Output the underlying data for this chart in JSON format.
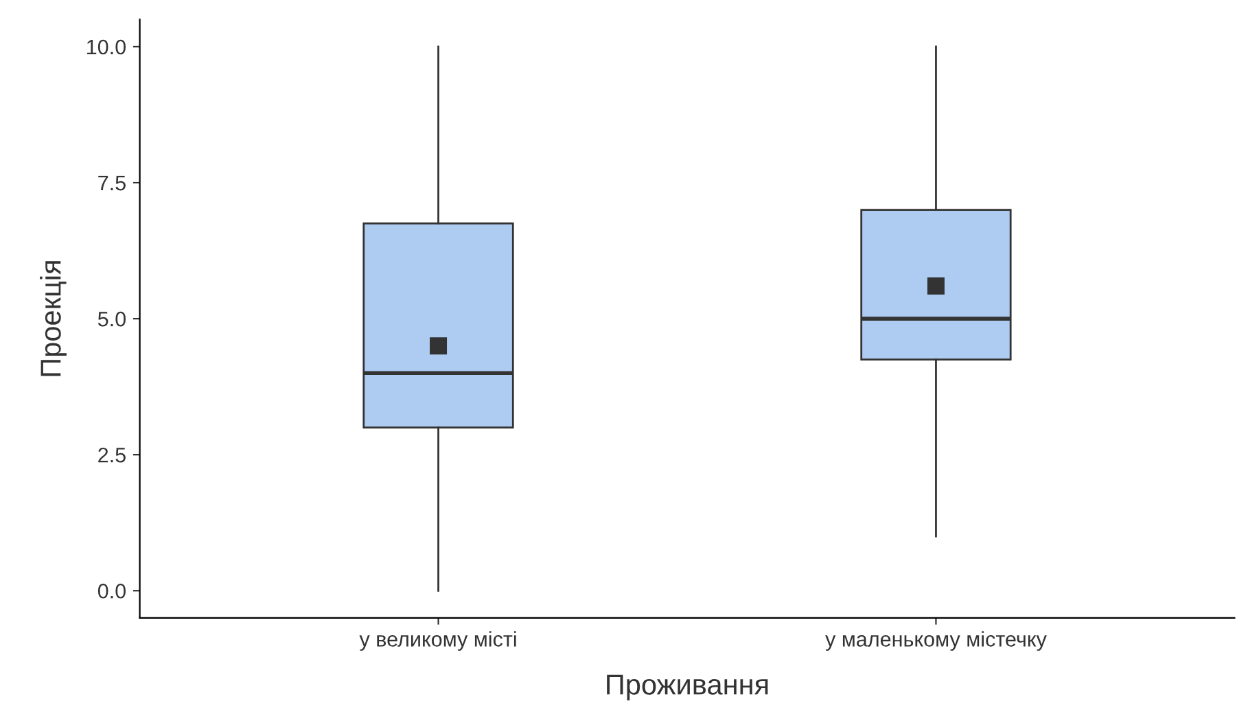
{
  "chart_data": {
    "type": "box",
    "xlabel": "Проживання",
    "ylabel": "Проекція",
    "categories": [
      "у великому місті",
      "у маленькому містечку"
    ],
    "boxes": [
      {
        "low": 0,
        "q1": 3.0,
        "median": 4.0,
        "q3": 6.75,
        "high": 10,
        "mean": 4.5
      },
      {
        "low": 1,
        "q1": 4.25,
        "median": 5.0,
        "q3": 7.0,
        "high": 10,
        "mean": 5.6
      }
    ],
    "color": "#aecbf2",
    "marker": "square",
    "ylim": [
      -0.5,
      10.5
    ],
    "yticks": [
      {
        "value": 0,
        "label": "0.0"
      },
      {
        "value": 2.5,
        "label": "2.5"
      },
      {
        "value": 5,
        "label": "5.0"
      },
      {
        "value": 7.5,
        "label": "7.5"
      },
      {
        "value": 10,
        "label": "10.0"
      }
    ],
    "grid": false,
    "legend": false
  }
}
